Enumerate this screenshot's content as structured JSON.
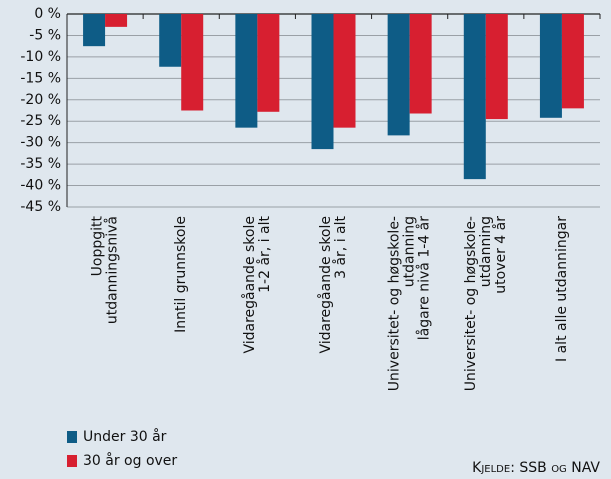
{
  "chart_data": {
    "type": "bar",
    "categories": [
      [
        "Uoppgitt",
        "utdanningsnivå"
      ],
      [
        "Inntil grunnskole"
      ],
      [
        "Vidaregåande skole",
        "1-2 år, i alt"
      ],
      [
        "Vidaregåande skole",
        "3 år, i alt"
      ],
      [
        "Universitet- og høgskole-",
        "utdanning",
        "lågare nivå 1-4 år"
      ],
      [
        "Universitet- og høgskole-",
        "utdanning",
        "utover 4 år"
      ],
      [
        "I alt alle utdanningar"
      ]
    ],
    "series": [
      {
        "name": "Under 30 år",
        "color": "#0e5c86",
        "values": [
          -7.5,
          -12.3,
          -26.5,
          -31.5,
          -28.3,
          -38.5,
          -24.2
        ]
      },
      {
        "name": "30 år og over",
        "color": "#d71f30",
        "values": [
          -3,
          -22.5,
          -22.8,
          -26.5,
          -23.2,
          -24.5,
          -22
        ]
      }
    ],
    "ylim": [
      -45,
      0
    ],
    "yticks": [
      {
        "value": 0,
        "label": "0 %"
      },
      {
        "value": -5,
        "label": "-5 %"
      },
      {
        "value": -10,
        "label": "-10 %"
      },
      {
        "value": -15,
        "label": "-15 %"
      },
      {
        "value": -20,
        "label": "-20 %"
      },
      {
        "value": -25,
        "label": "-25 %"
      },
      {
        "value": -30,
        "label": "-30 %"
      },
      {
        "value": -35,
        "label": "-35 %"
      },
      {
        "value": -40,
        "label": "-40 %"
      },
      {
        "value": -45,
        "label": "-45 %"
      }
    ],
    "grid": true,
    "source": "Kjelde: SSB og NAV"
  }
}
